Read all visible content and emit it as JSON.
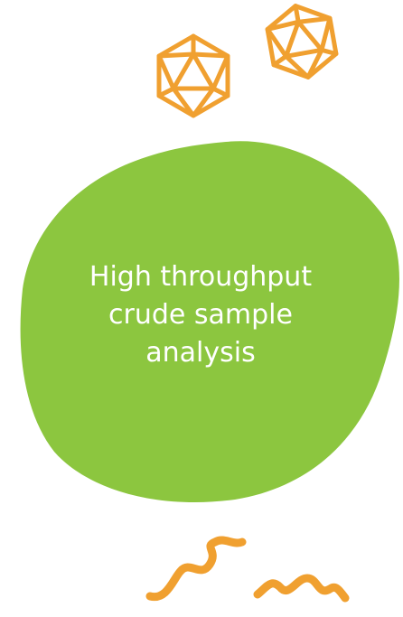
{
  "heading": {
    "lines": [
      "High throughput",
      "crude sample",
      "analysis"
    ]
  }
}
